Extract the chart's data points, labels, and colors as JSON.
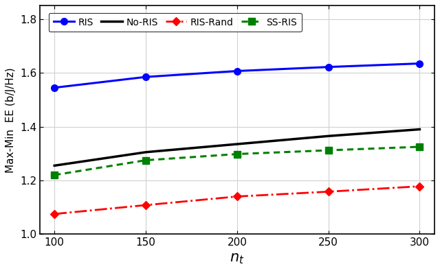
{
  "x": [
    100,
    150,
    200,
    250,
    300
  ],
  "ris": [
    1.545,
    1.585,
    1.607,
    1.622,
    1.635
  ],
  "no_ris": [
    1.255,
    1.305,
    1.335,
    1.365,
    1.39
  ],
  "ris_rand": [
    1.075,
    1.108,
    1.14,
    1.158,
    1.178
  ],
  "ss_ris": [
    1.22,
    1.275,
    1.298,
    1.312,
    1.325
  ],
  "xlabel": "$n_t$",
  "ylabel": "Max-Min  EE (b/J/Hz)",
  "ylim": [
    1.0,
    1.85
  ],
  "xlim": [
    92,
    308
  ],
  "yticks": [
    1.0,
    1.2,
    1.4,
    1.6,
    1.8
  ],
  "xticks": [
    100,
    150,
    200,
    250,
    300
  ],
  "legend_labels": [
    "RIS",
    "No-RIS",
    "RIS-Rand",
    "SS-RIS"
  ],
  "ris_color": "#0000FF",
  "no_ris_color": "#000000",
  "ris_rand_color": "#FF0000",
  "ss_ris_color": "#008000",
  "grid_color": "#d0d0d0",
  "background_color": "#ffffff"
}
